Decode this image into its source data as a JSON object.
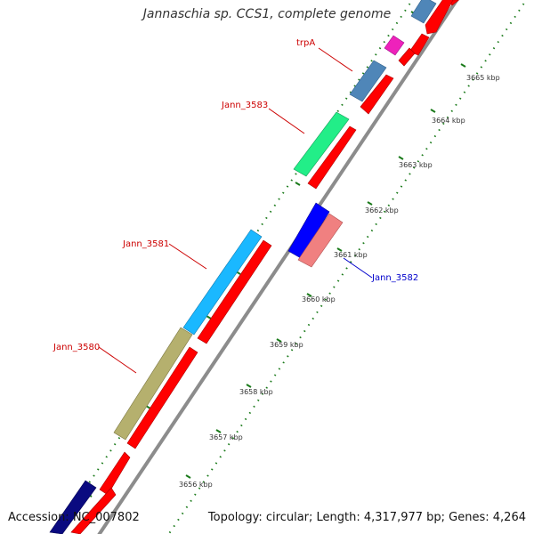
{
  "title": "Jannaschia sp. CCS1, complete genome",
  "footer": {
    "accession": "Accession: NC_007802",
    "summary": "Topology: circular; Length: 4,317,977 bp; Genes: 4,264"
  },
  "scale_labels": [
    "3656 kbp",
    "3657 kbp",
    "3658 kbp",
    "3659 kbp",
    "3660 kbp",
    "3661 kbp",
    "3662 kbp",
    "3663 kbp",
    "3664 kbp",
    "3665 kbp"
  ],
  "gene_labels": [
    {
      "text": "trpA",
      "color": "#cc0000"
    },
    {
      "text": "Jann_3583",
      "color": "#cc0000"
    },
    {
      "text": "Jann_3581",
      "color": "#cc0000"
    },
    {
      "text": "Jann_3580",
      "color": "#cc0000"
    },
    {
      "text": "Jann_3582",
      "color": "#0000cc"
    }
  ],
  "colors": {
    "backbone": "#8c8c8c",
    "orf": "#ff0000",
    "ticks": "#1a7a1a",
    "steelblue": "#4f86b8",
    "green": "#22ee88",
    "cyan": "#1ab8ff",
    "olive": "#b5b06e",
    "navy": "#0a0a80",
    "magenta": "#ee22bb",
    "blue": "#0000ff",
    "pink": "#f08080"
  }
}
